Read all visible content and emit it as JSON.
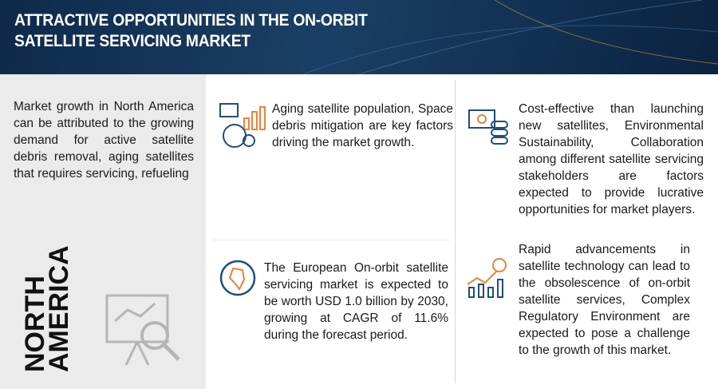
{
  "header": {
    "title_lines": [
      "ATTRACTIVE OPPORTUNITIES IN THE ON-ORBIT",
      "SATELLITE SERVICING MARKET"
    ]
  },
  "sidebar": {
    "text": "Market growth in North America can be attributed to the growing demand for active satellite debris removal, aging satellites that requires servicing, refueling",
    "region_lines": [
      "NORTH",
      "AMERICA"
    ]
  },
  "cards": [
    {
      "text": "Aging satellite population, Space debris mitigation are key factors driving the market growth."
    },
    {
      "text": "Cost-effective than launching new satellites, Environmental Sustainability, Collaboration among different satellite servicing stakeholders are factors expected to provide lucrative opportunities for market players."
    },
    {
      "text": "The European On-orbit satellite servicing market is expected to be worth USD 1.0 billion by 2030, growing at CAGR of 11.6% during the forecast period."
    },
    {
      "text": "Rapid advancements in satellite technology can lead to the obsolescence of on-orbit satellite services, Complex Regulatory Environment are expected to pose a challenge to the growth of this market."
    }
  ]
}
